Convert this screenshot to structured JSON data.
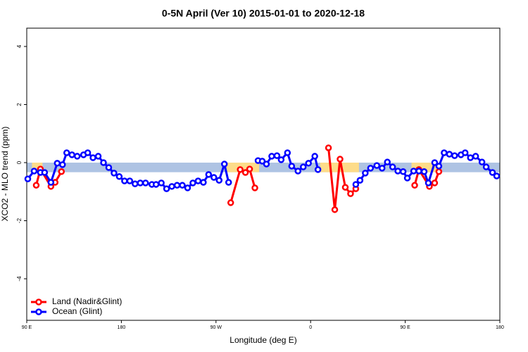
{
  "chart_data": {
    "type": "line",
    "title": "0-5N April (Ver 10)   2015-01-01 to 2020-12-18",
    "x_label": "Longitude (deg E)",
    "y_label": "XCO2 - MLO trend (ppm)",
    "xlim": [
      90,
      540
    ],
    "ylim": [
      -5.43,
      4.63
    ],
    "xticks": [
      {
        "value": 90,
        "label": "90 E"
      },
      {
        "value": 180,
        "label": "180"
      },
      {
        "value": 270,
        "label": "90 W"
      },
      {
        "value": 360,
        "label": "0"
      },
      {
        "value": 450,
        "label": "90 E"
      },
      {
        "value": 540,
        "label": "180"
      }
    ],
    "yticks": [
      -4,
      -2,
      0,
      2,
      4
    ],
    "legend": "bottom-left",
    "reference_band": {
      "ylim": [
        -0.33,
        0
      ],
      "color": "#aec3e3",
      "land_ranges": [
        [
          95,
          105
        ],
        [
          279,
          311
        ],
        [
          369,
          406
        ],
        [
          456,
          483
        ]
      ],
      "land_color": "#fddc8a"
    },
    "series": [
      {
        "name": "Land (Nadir&Glint)",
        "color": "#ff0000",
        "x": [
          99,
          103,
          113,
          117,
          123,
          null,
          284,
          293,
          298,
          302,
          307,
          null,
          377,
          383,
          388,
          393,
          398,
          403,
          null,
          459,
          463,
          473,
          478,
          482
        ],
        "values": [
          -0.78,
          -0.22,
          -0.82,
          -0.68,
          -0.31,
          null,
          -1.38,
          -0.24,
          -0.34,
          -0.22,
          -0.87,
          null,
          0.51,
          -1.62,
          0.12,
          -0.85,
          -1.07,
          -0.9,
          null,
          -0.78,
          -0.24,
          -0.82,
          -0.7,
          -0.31
        ]
      },
      {
        "name": "Ocean (Glint)",
        "color": "#0000ff",
        "x": [
          91,
          97,
          103,
          107,
          113,
          119,
          124,
          128,
          133,
          138,
          144,
          148,
          153,
          158,
          163,
          168,
          173,
          178,
          183,
          188,
          193,
          198,
          203,
          209,
          213,
          218,
          223,
          228,
          233,
          238,
          243,
          248,
          253,
          258,
          263,
          268,
          273,
          278,
          282,
          null,
          310,
          314,
          318,
          323,
          328,
          332,
          338,
          342,
          348,
          353,
          358,
          364,
          367,
          null,
          403,
          407,
          412,
          417,
          423,
          428,
          433,
          438,
          443,
          448,
          452,
          458,
          463,
          468,
          472,
          478,
          482,
          487,
          492,
          497,
          503,
          507,
          512,
          517,
          523,
          527,
          533,
          537
        ],
        "values": [
          -0.56,
          -0.29,
          -0.34,
          -0.34,
          -0.68,
          -0.02,
          -0.07,
          0.34,
          0.27,
          0.22,
          0.27,
          0.34,
          0.17,
          0.22,
          0,
          -0.17,
          -0.36,
          -0.48,
          -0.63,
          -0.63,
          -0.73,
          -0.7,
          -0.7,
          -0.75,
          -0.75,
          -0.7,
          -0.9,
          -0.82,
          -0.78,
          -0.78,
          -0.87,
          -0.7,
          -0.63,
          -0.68,
          -0.41,
          -0.51,
          -0.61,
          -0.05,
          -0.68,
          null,
          0.07,
          0.05,
          -0.05,
          0.22,
          0.24,
          0.1,
          0.34,
          -0.12,
          -0.29,
          -0.15,
          -0.02,
          0.22,
          -0.24,
          null,
          -0.75,
          -0.61,
          -0.36,
          -0.19,
          -0.1,
          -0.19,
          0.02,
          -0.15,
          -0.29,
          -0.31,
          -0.53,
          -0.29,
          -0.29,
          -0.31,
          -0.7,
          0,
          -0.12,
          0.34,
          0.29,
          0.24,
          0.27,
          0.34,
          0.17,
          0.22,
          0.02,
          -0.15,
          -0.34,
          -0.46
        ]
      }
    ]
  }
}
